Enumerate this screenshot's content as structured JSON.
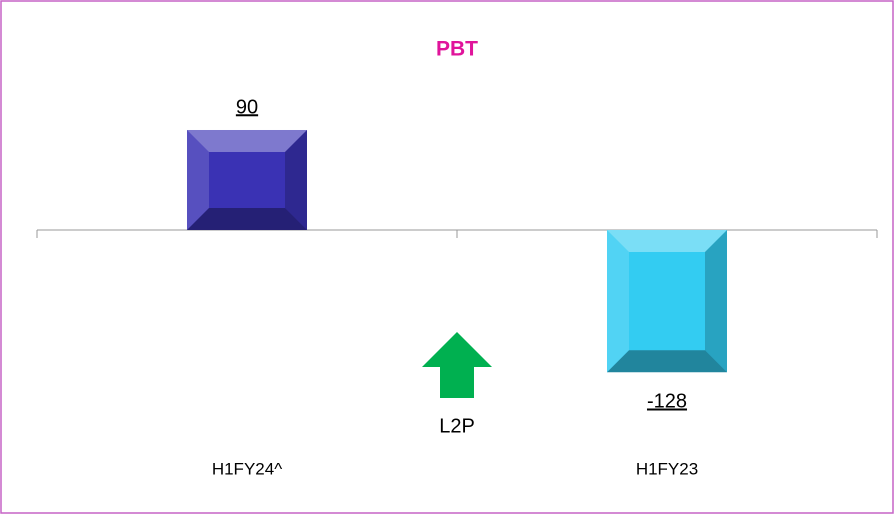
{
  "chart_data": {
    "type": "bar",
    "title": "PBT",
    "categories": [
      "H1FY24^",
      "H1FY23"
    ],
    "values": [
      90,
      -128
    ],
    "colors": [
      "#3a32b4",
      "#33ccf2"
    ],
    "ylim": [
      -200,
      135
    ],
    "annotations": [
      {
        "text": "L2P",
        "color": "#00b050"
      }
    ]
  }
}
